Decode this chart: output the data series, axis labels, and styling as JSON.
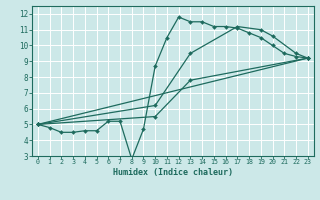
{
  "xlabel": "Humidex (Indice chaleur)",
  "bg_color": "#cce8e8",
  "line_color": "#1e6b5e",
  "grid_color": "#ffffff",
  "xlim": [
    -0.5,
    23.5
  ],
  "ylim": [
    3,
    12.5
  ],
  "xticks": [
    0,
    1,
    2,
    3,
    4,
    5,
    6,
    7,
    8,
    9,
    10,
    11,
    12,
    13,
    14,
    15,
    16,
    17,
    18,
    19,
    20,
    21,
    22,
    23
  ],
  "yticks": [
    3,
    4,
    5,
    6,
    7,
    8,
    9,
    10,
    11,
    12
  ],
  "lines": [
    {
      "x": [
        0,
        1,
        2,
        3,
        4,
        5,
        6,
        7,
        8,
        9,
        10,
        11,
        12,
        13,
        14,
        15,
        16,
        17,
        18,
        19,
        20,
        21,
        22,
        23
      ],
      "y": [
        5.0,
        4.8,
        4.5,
        4.5,
        4.6,
        4.6,
        5.2,
        5.2,
        2.8,
        4.7,
        8.7,
        10.5,
        11.8,
        11.5,
        11.5,
        11.2,
        11.2,
        11.1,
        10.8,
        10.5,
        10.0,
        9.5,
        9.3,
        9.2
      ]
    },
    {
      "x": [
        0,
        10,
        13,
        17,
        19,
        20,
        22,
        23
      ],
      "y": [
        5.0,
        6.2,
        9.5,
        11.2,
        11.0,
        10.6,
        9.5,
        9.2
      ]
    },
    {
      "x": [
        0,
        10,
        13,
        23
      ],
      "y": [
        5.0,
        5.5,
        7.8,
        9.2
      ]
    },
    {
      "x": [
        0,
        23
      ],
      "y": [
        5.0,
        9.2
      ]
    }
  ]
}
